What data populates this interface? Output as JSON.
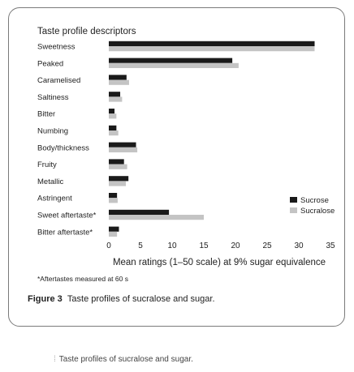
{
  "chart_data": {
    "type": "bar",
    "orientation": "horizontal",
    "title": "Taste profile descriptors",
    "xlabel": "Mean ratings (1–50 scale) at 9% sugar equivalence",
    "xlim": [
      0,
      35
    ],
    "xticks": [
      0,
      5,
      10,
      15,
      20,
      25,
      30,
      35
    ],
    "grid": false,
    "legend_position": "bottom-right",
    "categories": [
      "Sweetness",
      "Peaked",
      "Caramelised",
      "Saltiness",
      "Bitter",
      "Numbing",
      "Body/thickness",
      "Fruity",
      "Metallic",
      "Astringent",
      "Sweet aftertaste*",
      "Bitter aftertaste*"
    ],
    "series": [
      {
        "name": "Sucrose",
        "color": "#1a1a1a",
        "values": [
          32.5,
          19.5,
          2.8,
          1.8,
          0.9,
          1.2,
          4.3,
          2.4,
          3.1,
          1.3,
          9.5,
          1.6
        ]
      },
      {
        "name": "Sucralose",
        "color": "#c4c4c4",
        "values": [
          32.5,
          20.5,
          3.2,
          2.1,
          1.2,
          1.5,
          4.5,
          2.9,
          2.7,
          1.4,
          15.0,
          1.3
        ]
      }
    ]
  },
  "footnote": "*Aftertastes measured at 60 s",
  "caption": {
    "label": "Figure 3",
    "text": "Taste profiles of sucralose and sugar."
  },
  "bottom_caption": {
    "marker": "⁞",
    "text": "Taste profiles of sucralose and sugar."
  }
}
